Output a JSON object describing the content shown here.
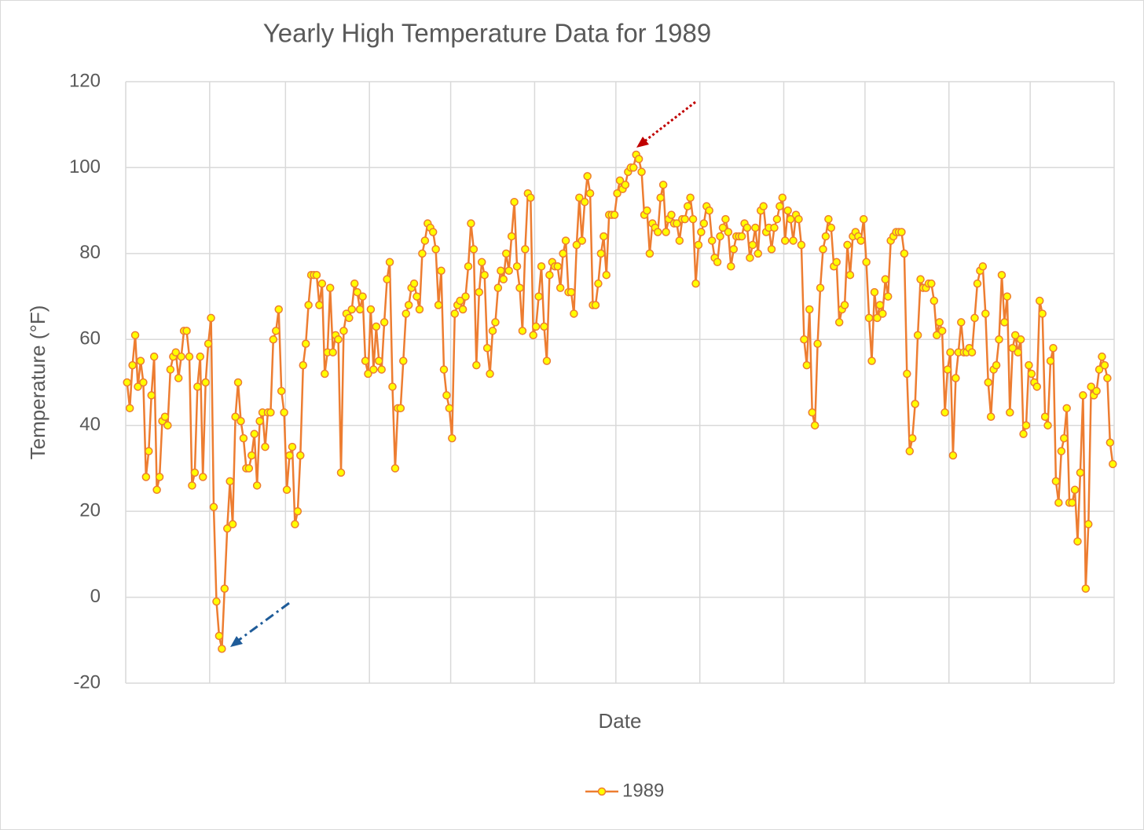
{
  "chart_data": {
    "type": "line",
    "title": "Yearly High Temperature Data for 1989",
    "xlabel": "Date",
    "ylabel": "Temperature (°F)",
    "ylim": [
      -20,
      120
    ],
    "yticks": [
      -20,
      0,
      20,
      40,
      60,
      80,
      100,
      120
    ],
    "xlim": [
      0,
      365
    ],
    "xticks": [
      0,
      31,
      59,
      90,
      120,
      151,
      181,
      212,
      243,
      273,
      304,
      334,
      365
    ],
    "grid": true,
    "legend": "bottom",
    "series": [
      {
        "name": "1989",
        "color": "#ed7d31",
        "marker_color": "#ffff00",
        "values": [
          50,
          44,
          54,
          61,
          49,
          55,
          50,
          28,
          34,
          47,
          56,
          25,
          28,
          41,
          42,
          40,
          53,
          56,
          57,
          51,
          56,
          62,
          62,
          56,
          26,
          29,
          49,
          56,
          28,
          50,
          59,
          65,
          21,
          -1,
          -9,
          -12,
          2,
          16,
          27,
          17,
          42,
          50,
          41,
          37,
          30,
          30,
          33,
          38,
          26,
          41,
          43,
          35,
          43,
          43,
          60,
          62,
          67,
          48,
          43,
          25,
          33,
          35,
          17,
          20,
          33,
          54,
          59,
          68,
          75,
          75,
          75,
          68,
          73,
          52,
          57,
          72,
          57,
          61,
          60,
          29,
          62,
          66,
          65,
          67,
          73,
          71,
          67,
          70,
          55,
          52,
          67,
          53,
          63,
          55,
          53,
          64,
          74,
          78,
          49,
          30,
          44,
          44,
          55,
          66,
          68,
          72,
          73,
          70,
          67,
          80,
          83,
          87,
          86,
          85,
          81,
          68,
          76,
          53,
          47,
          44,
          37,
          66,
          68,
          69,
          67,
          70,
          77,
          87,
          81,
          54,
          71,
          78,
          75,
          58,
          52,
          62,
          64,
          72,
          76,
          74,
          80,
          76,
          84,
          92,
          77,
          72,
          62,
          81,
          94,
          93,
          61,
          63,
          70,
          77,
          63,
          55,
          75,
          78,
          77,
          77,
          72,
          80,
          83,
          71,
          71,
          66,
          82,
          93,
          83,
          92,
          98,
          94,
          68,
          68,
          73,
          80,
          84,
          75,
          89,
          89,
          89,
          94,
          97,
          95,
          96,
          99,
          100,
          100,
          103,
          102,
          99,
          89,
          90,
          80,
          87,
          86,
          85,
          93,
          96,
          85,
          88,
          89,
          87,
          87,
          83,
          88,
          88,
          91,
          93,
          88,
          73,
          82,
          85,
          87,
          91,
          90,
          83,
          79,
          78,
          84,
          86,
          88,
          85,
          77,
          81,
          84,
          84,
          84,
          87,
          86,
          79,
          82,
          86,
          80,
          90,
          91,
          85,
          86,
          81,
          86,
          88,
          91,
          93,
          83,
          90,
          88,
          83,
          89,
          88,
          82,
          60,
          54,
          67,
          43,
          40,
          59,
          72,
          81,
          84,
          88,
          86,
          77,
          78,
          64,
          67,
          68,
          82,
          75,
          84,
          85,
          84,
          83,
          88,
          78,
          65,
          55,
          71,
          65,
          68,
          66,
          74,
          70,
          83,
          84,
          85,
          85,
          85,
          80,
          52,
          34,
          37,
          45,
          61,
          74,
          72,
          72,
          73,
          73,
          69,
          61,
          64,
          62,
          43,
          53,
          57,
          33,
          51,
          57,
          64,
          57,
          57,
          58,
          57,
          65,
          73,
          76,
          77,
          66,
          50,
          42,
          53,
          54,
          60,
          75,
          64,
          70,
          43,
          58,
          61,
          57,
          60,
          38,
          40,
          54,
          52,
          50,
          49,
          69,
          66,
          42,
          40,
          55,
          58,
          27,
          22,
          34,
          37,
          44,
          22,
          22,
          25,
          13,
          29,
          47,
          2,
          17,
          49,
          47,
          48,
          53,
          56,
          54,
          51,
          36,
          31
        ]
      }
    ]
  }
}
